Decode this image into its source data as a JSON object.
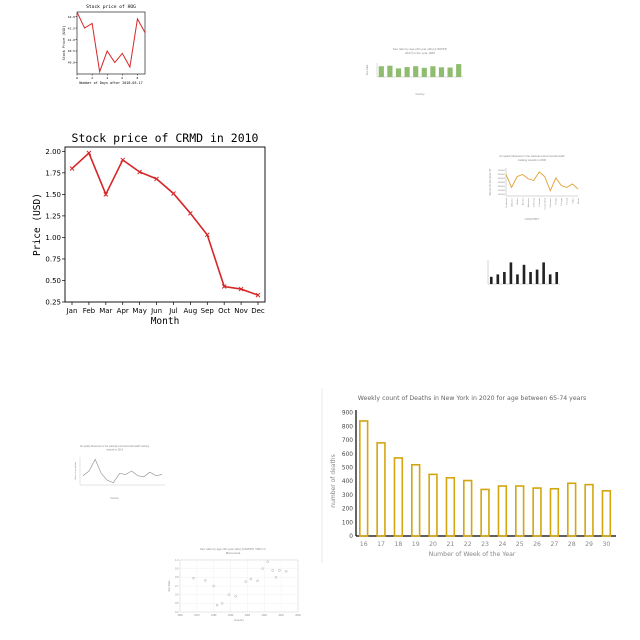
{
  "chart_data": [
    {
      "id": "hog",
      "type": "line",
      "title": "Stock price of HOG",
      "xlabel": "Number of Days after 2018-05-17",
      "ylabel": "Stock Price (USD)",
      "x": [
        0,
        1,
        2,
        3,
        4,
        5,
        6,
        7,
        8,
        9
      ],
      "values": [
        42.2,
        41.5,
        41.7,
        39.6,
        40.5,
        40.0,
        40.4,
        39.8,
        41.9,
        41.3
      ],
      "xticks": [
        "0",
        "2",
        "4",
        "6",
        "8"
      ],
      "yticks": [
        "40.0",
        "40.5",
        "41.0",
        "41.5",
        "42.0"
      ],
      "ylim": [
        39.5,
        42.2
      ],
      "color": "#d62728"
    },
    {
      "id": "sexratio-bar",
      "type": "bar",
      "title": "Sex ratio by age (20 year olds) (UNWPP, 2017) in the year 1960",
      "xlabel": "Country",
      "ylabel": "Sex Ratio",
      "values": [
        1.0,
        1.05,
        0.8,
        0.92,
        1.0,
        0.85,
        1.0,
        0.9,
        0.88,
        1.2
      ],
      "color": "#8fbc6f"
    },
    {
      "id": "crmd",
      "type": "line",
      "title": "Stock price of CRMD in 2010",
      "xlabel": "Month",
      "ylabel": "Price (USD)",
      "categories": [
        "Jan",
        "Feb",
        "Mar",
        "Apr",
        "May",
        "Jun",
        "Jul",
        "Aug",
        "Sep",
        "Oct",
        "Nov",
        "Dec"
      ],
      "values": [
        1.8,
        1.98,
        1.5,
        1.9,
        1.76,
        1.68,
        1.51,
        1.28,
        1.03,
        0.43,
        0.4,
        0.33
      ],
      "yticks": [
        "0.25",
        "0.50",
        "0.75",
        "1.00",
        "1.25",
        "1.50",
        "1.75",
        "2.00"
      ],
      "ylim": [
        0.25,
        2.05
      ],
      "color": "#d62728"
    },
    {
      "id": "airquality-line",
      "type": "line",
      "title": "Air quality Measures in the national environmental health tracking network in 2000",
      "xlabel": "COUNTRY",
      "ylabel": "VALUE OF AIR QUALITY",
      "values": [
        11,
        8,
        10.5,
        11,
        10,
        9.6,
        11.6,
        10.5,
        7.2,
        10.2,
        8.4,
        8.0,
        8.8,
        7.6
      ],
      "yticks": [
        "700000",
        "600000",
        "500000",
        "400000",
        "300000",
        "200000",
        "100000"
      ],
      "xticks": [
        "Northeast",
        "Alabama",
        "Alaska",
        "Arizona",
        "Arkansas",
        "California",
        "Colorado",
        "Connecticut",
        "Delaware",
        "Florida",
        "Georgia",
        "Hawaii",
        "Idaho",
        "Illinois"
      ],
      "color": "#e0a030"
    },
    {
      "id": "tiny-bar",
      "type": "bar",
      "values": [
        3,
        4,
        5,
        9,
        4,
        8,
        5,
        6,
        9,
        4,
        5
      ],
      "color": "#222222"
    },
    {
      "id": "airquality-small",
      "type": "line",
      "title": "Air quality Measures in the national environmental health tracking network in 2014",
      "xlabel": "Country",
      "ylabel": "Value of air quality",
      "values": [
        6,
        8,
        13,
        7,
        4,
        3,
        7,
        6.5,
        8,
        6,
        5.5,
        7.5,
        6,
        6.5
      ],
      "color": "#999999"
    },
    {
      "id": "deaths-ny",
      "type": "bar",
      "title": "Weekly count of Deaths in New York in 2020 for age between 65-74 years",
      "xlabel": "Number of Week of the Year",
      "ylabel": "number of deaths",
      "categories": [
        "16",
        "17",
        "18",
        "19",
        "20",
        "21",
        "22",
        "23",
        "24",
        "25",
        "26",
        "27",
        "28",
        "29",
        "30"
      ],
      "values": [
        840,
        680,
        570,
        520,
        450,
        425,
        405,
        340,
        365,
        365,
        350,
        345,
        385,
        375,
        330
      ],
      "yticks": [
        "0",
        "100",
        "200",
        "300",
        "400",
        "500",
        "600",
        "700",
        "800",
        "900"
      ],
      "ylim": [
        0,
        920
      ],
      "color": "#d4a50f"
    },
    {
      "id": "sexratio-scatter",
      "type": "scatter",
      "title": "Sex ratio by age (20 year olds) (UNWPP, 1997) in Micronesia",
      "xlabel": "Country",
      "ylabel": "Sex Ratio",
      "x": [
        1968,
        1975,
        1980,
        1982,
        1985,
        1989,
        1993,
        1999,
        2002,
        2006,
        2009,
        2012,
        2015,
        2017,
        2019,
        2023
      ],
      "y": [
        0.79,
        0.765,
        0.7,
        0.48,
        0.5,
        0.6,
        0.58,
        0.75,
        0.78,
        0.76,
        0.9,
        0.98,
        0.88,
        0.8,
        0.88,
        0.87
      ],
      "xticks": [
        "1960",
        "1970",
        "1980",
        "1990",
        "2000",
        "2010",
        "2020",
        "2030"
      ],
      "yticks": [
        "0.4",
        "0.5",
        "0.6",
        "0.7",
        "0.8",
        "0.9",
        "1.0"
      ],
      "color": "#bbbbbb"
    }
  ]
}
